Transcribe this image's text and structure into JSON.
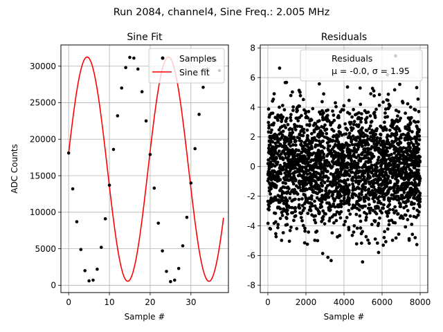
{
  "figure": {
    "suptitle": "Run 2084, channel4, Sine Freq.: 2.005 MHz"
  },
  "colors": {
    "fit": "#ff0000",
    "points": "#000000",
    "grid": "#b0b0b0"
  },
  "chart_data": [
    {
      "type": "line",
      "title": "Sine Fit",
      "xlabel": "Sample #",
      "ylabel": "ADC Counts",
      "xlim": [
        -1.9,
        39.2
      ],
      "ylim": [
        -1000,
        32900
      ],
      "xticks": [
        0,
        10,
        20,
        30
      ],
      "yticks": [
        0,
        5000,
        10000,
        15000,
        20000,
        25000,
        30000
      ],
      "legend": {
        "position": "top-right",
        "entries": [
          "Samples",
          "Sine fit"
        ]
      },
      "fit": {
        "amplitude": 15350,
        "offset": 15900,
        "period": 19.94,
        "phase": 0.144,
        "x_range": [
          0,
          38
        ]
      },
      "series": [
        {
          "name": "Samples",
          "style": "markers",
          "x": [
            0,
            1,
            2,
            3,
            4,
            5,
            6,
            7,
            8,
            9,
            10,
            11,
            12,
            13,
            14,
            15,
            16,
            17,
            18,
            19,
            20,
            21,
            22,
            23,
            24,
            25,
            26,
            27,
            28,
            29,
            30,
            31,
            32,
            33,
            34,
            35,
            36,
            37
          ],
          "y": [
            18100,
            13200,
            8700,
            4900,
            2000,
            600,
            700,
            2200,
            5200,
            9100,
            13700,
            18600,
            23200,
            27000,
            29800,
            31200,
            31100,
            29600,
            26500,
            22500,
            17900,
            13300,
            8500,
            4700,
            1900,
            500,
            700,
            2300,
            5400,
            9300,
            14000,
            18700,
            23400,
            27100,
            29600,
            31000,
            30800,
            29400
          ]
        },
        {
          "name": "Sine fit",
          "style": "line"
        }
      ]
    },
    {
      "type": "scatter",
      "title": "Residuals",
      "xlabel": "Sample #",
      "ylabel": "",
      "xlim": [
        -400,
        8400
      ],
      "ylim": [
        -8.5,
        8.2
      ],
      "xticks": [
        0,
        2000,
        4000,
        6000,
        8000
      ],
      "yticks": [
        -8,
        -6,
        -4,
        -2,
        0,
        2,
        4,
        6,
        8
      ],
      "legend": {
        "position": "top-right",
        "entries": [
          "Residuals",
          "μ = -0.0, σ = 1.95"
        ]
      },
      "stats": {
        "mu": "-0.0",
        "sigma": "1.95",
        "n_points": 8000,
        "x_max": 7999,
        "min": -7.8,
        "max": 7.5
      }
    }
  ]
}
